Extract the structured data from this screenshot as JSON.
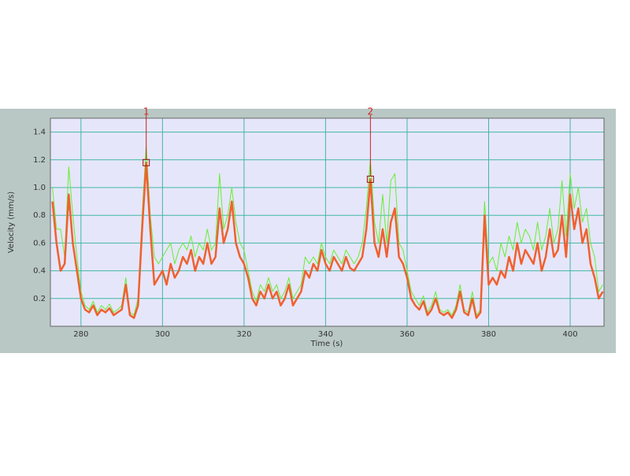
{
  "chart_data": {
    "type": "line",
    "x_label": "Time (s)",
    "y_label": "Velocity (mm/s)",
    "x": [
      273,
      274,
      275,
      276,
      277,
      278,
      279,
      280,
      281,
      282,
      283,
      284,
      285,
      286,
      287,
      288,
      289,
      290,
      291,
      292,
      293,
      294,
      295,
      296,
      297,
      298,
      299,
      300,
      301,
      302,
      303,
      304,
      305,
      306,
      307,
      308,
      309,
      310,
      311,
      312,
      313,
      314,
      315,
      316,
      317,
      318,
      319,
      320,
      321,
      322,
      323,
      324,
      325,
      326,
      327,
      328,
      329,
      330,
      331,
      332,
      333,
      334,
      335,
      336,
      337,
      338,
      339,
      340,
      341,
      342,
      343,
      344,
      345,
      346,
      347,
      348,
      349,
      350,
      351,
      352,
      353,
      354,
      355,
      356,
      357,
      358,
      359,
      360,
      361,
      362,
      363,
      364,
      365,
      366,
      367,
      368,
      369,
      370,
      371,
      372,
      373,
      374,
      375,
      376,
      377,
      378,
      379,
      380,
      381,
      382,
      383,
      384,
      385,
      386,
      387,
      388,
      389,
      390,
      391,
      392,
      393,
      394,
      395,
      396,
      397,
      398,
      399,
      400,
      401,
      402,
      403,
      404,
      405,
      406,
      407,
      408
    ],
    "series": [
      {
        "color": "#66ee33",
        "width": 1,
        "values": [
          1.0,
          0.7,
          0.7,
          0.5,
          1.15,
          0.8,
          0.5,
          0.25,
          0.15,
          0.12,
          0.18,
          0.1,
          0.15,
          0.12,
          0.16,
          0.1,
          0.12,
          0.15,
          0.35,
          0.1,
          0.08,
          0.2,
          0.8,
          1.3,
          0.8,
          0.5,
          0.45,
          0.5,
          0.55,
          0.6,
          0.45,
          0.55,
          0.6,
          0.55,
          0.65,
          0.5,
          0.6,
          0.55,
          0.7,
          0.55,
          0.6,
          1.1,
          0.7,
          0.8,
          1.0,
          0.75,
          0.6,
          0.55,
          0.4,
          0.25,
          0.18,
          0.3,
          0.25,
          0.35,
          0.25,
          0.3,
          0.2,
          0.25,
          0.35,
          0.2,
          0.25,
          0.3,
          0.5,
          0.45,
          0.5,
          0.45,
          0.6,
          0.5,
          0.45,
          0.55,
          0.5,
          0.45,
          0.55,
          0.5,
          0.45,
          0.5,
          0.6,
          0.85,
          1.2,
          0.75,
          0.6,
          0.95,
          0.6,
          1.05,
          1.1,
          0.6,
          0.55,
          0.4,
          0.25,
          0.2,
          0.15,
          0.22,
          0.1,
          0.15,
          0.25,
          0.12,
          0.1,
          0.12,
          0.08,
          0.15,
          0.3,
          0.12,
          0.1,
          0.25,
          0.08,
          0.12,
          0.9,
          0.45,
          0.5,
          0.4,
          0.6,
          0.5,
          0.65,
          0.55,
          0.75,
          0.6,
          0.7,
          0.65,
          0.55,
          0.75,
          0.55,
          0.65,
          0.85,
          0.6,
          0.7,
          1.05,
          0.65,
          1.1,
          0.85,
          1.0,
          0.75,
          0.85,
          0.6,
          0.5,
          0.25,
          0.3
        ]
      },
      {
        "color": "#f06030",
        "width": 2.5,
        "values": [
          0.9,
          0.6,
          0.4,
          0.45,
          0.95,
          0.6,
          0.4,
          0.2,
          0.12,
          0.1,
          0.15,
          0.08,
          0.12,
          0.1,
          0.13,
          0.08,
          0.1,
          0.12,
          0.3,
          0.08,
          0.06,
          0.15,
          0.7,
          1.18,
          0.7,
          0.3,
          0.35,
          0.4,
          0.3,
          0.45,
          0.35,
          0.4,
          0.5,
          0.45,
          0.55,
          0.4,
          0.5,
          0.45,
          0.6,
          0.45,
          0.5,
          0.85,
          0.6,
          0.7,
          0.9,
          0.6,
          0.5,
          0.45,
          0.35,
          0.2,
          0.15,
          0.25,
          0.2,
          0.3,
          0.2,
          0.25,
          0.15,
          0.2,
          0.3,
          0.15,
          0.2,
          0.25,
          0.4,
          0.35,
          0.45,
          0.4,
          0.55,
          0.45,
          0.4,
          0.5,
          0.45,
          0.4,
          0.5,
          0.42,
          0.4,
          0.45,
          0.5,
          0.7,
          1.06,
          0.6,
          0.5,
          0.7,
          0.5,
          0.75,
          0.85,
          0.5,
          0.45,
          0.35,
          0.2,
          0.15,
          0.12,
          0.18,
          0.08,
          0.12,
          0.2,
          0.1,
          0.08,
          0.1,
          0.06,
          0.12,
          0.25,
          0.1,
          0.08,
          0.2,
          0.06,
          0.1,
          0.8,
          0.3,
          0.35,
          0.3,
          0.4,
          0.35,
          0.5,
          0.4,
          0.6,
          0.45,
          0.55,
          0.5,
          0.45,
          0.6,
          0.4,
          0.5,
          0.7,
          0.5,
          0.55,
          0.8,
          0.5,
          0.95,
          0.7,
          0.85,
          0.6,
          0.7,
          0.45,
          0.35,
          0.2,
          0.25
        ]
      }
    ],
    "annotations": [
      {
        "label": "1",
        "x": 296,
        "y": 1.18
      },
      {
        "label": "2",
        "x": 351,
        "y": 1.06
      }
    ],
    "xlim": [
      272.5,
      408.3
    ],
    "xticks": [
      280,
      300,
      320,
      340,
      360,
      380,
      400
    ],
    "ylim": [
      0,
      1.5
    ],
    "yticks": [
      0.2,
      0.4,
      0.6,
      0.8,
      {
        "value": 1,
        "label": "1.0"
      },
      1.2,
      1.4
    ],
    "grid": true
  }
}
